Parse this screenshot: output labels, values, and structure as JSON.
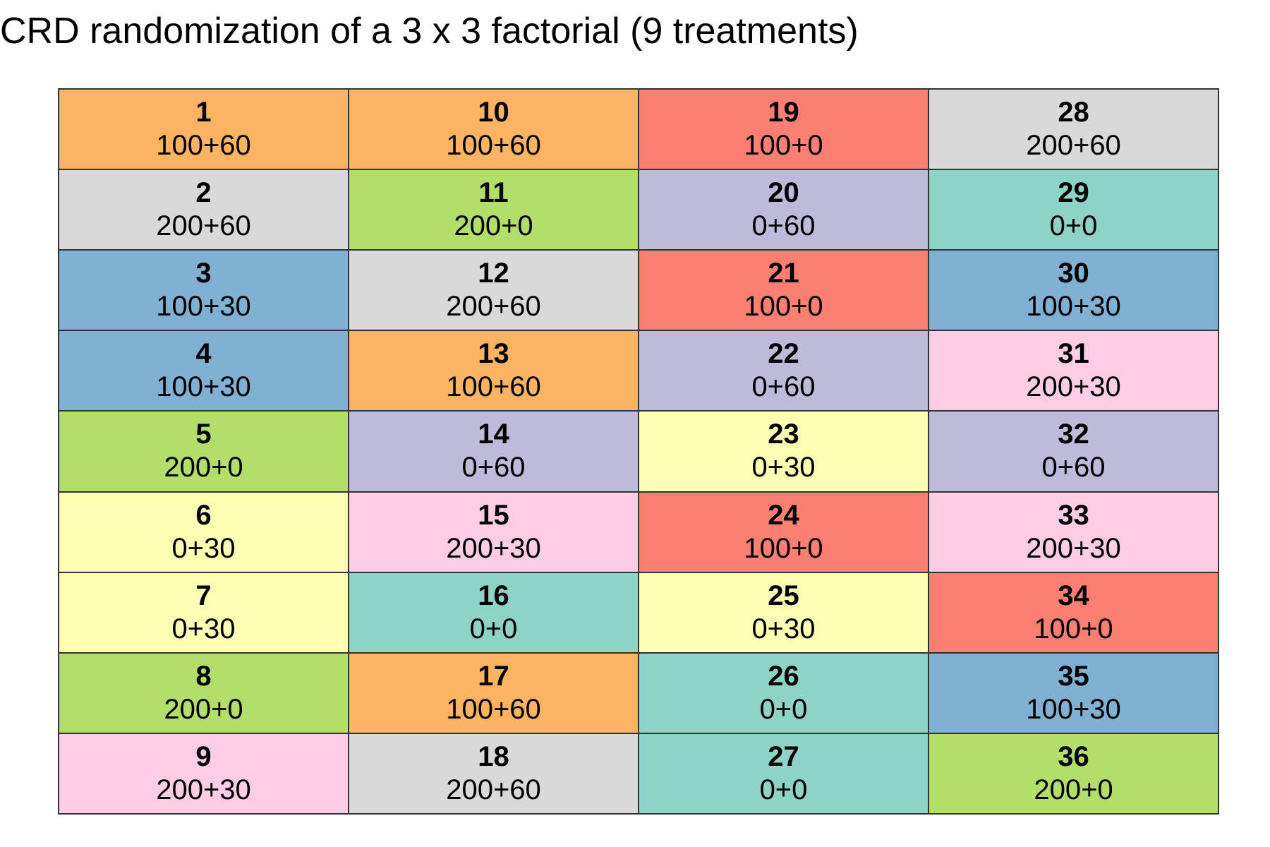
{
  "title": "CRD randomization of a 3 x 3 factorial (9 treatments)",
  "treatment_colors": {
    "100+60": "#fdb462",
    "100+0": "#fb8072",
    "200+60": "#d9d9d9",
    "200+0": "#b3de69",
    "0+60": "#bebada",
    "0+0": "#8dd3c7",
    "100+30": "#80b1d3",
    "200+30": "#fccde5",
    "0+30": "#ffffb3"
  },
  "plots": [
    {
      "plot": "1",
      "treatment": "100+60"
    },
    {
      "plot": "2",
      "treatment": "200+60"
    },
    {
      "plot": "3",
      "treatment": "100+30"
    },
    {
      "plot": "4",
      "treatment": "100+30"
    },
    {
      "plot": "5",
      "treatment": "200+0"
    },
    {
      "plot": "6",
      "treatment": "0+30"
    },
    {
      "plot": "7",
      "treatment": "0+30"
    },
    {
      "plot": "8",
      "treatment": "200+0"
    },
    {
      "plot": "9",
      "treatment": "200+30"
    },
    {
      "plot": "10",
      "treatment": "100+60"
    },
    {
      "plot": "11",
      "treatment": "200+0"
    },
    {
      "plot": "12",
      "treatment": "200+60"
    },
    {
      "plot": "13",
      "treatment": "100+60"
    },
    {
      "plot": "14",
      "treatment": "0+60"
    },
    {
      "plot": "15",
      "treatment": "200+30"
    },
    {
      "plot": "16",
      "treatment": "0+0"
    },
    {
      "plot": "17",
      "treatment": "100+60"
    },
    {
      "plot": "18",
      "treatment": "200+60"
    },
    {
      "plot": "19",
      "treatment": "100+0"
    },
    {
      "plot": "20",
      "treatment": "0+60"
    },
    {
      "plot": "21",
      "treatment": "100+0"
    },
    {
      "plot": "22",
      "treatment": "0+60"
    },
    {
      "plot": "23",
      "treatment": "0+30"
    },
    {
      "plot": "24",
      "treatment": "100+0"
    },
    {
      "plot": "25",
      "treatment": "0+30"
    },
    {
      "plot": "26",
      "treatment": "0+0"
    },
    {
      "plot": "27",
      "treatment": "0+0"
    },
    {
      "plot": "28",
      "treatment": "200+60"
    },
    {
      "plot": "29",
      "treatment": "0+0"
    },
    {
      "plot": "30",
      "treatment": "100+30"
    },
    {
      "plot": "31",
      "treatment": "200+30"
    },
    {
      "plot": "32",
      "treatment": "0+60"
    },
    {
      "plot": "33",
      "treatment": "200+30"
    },
    {
      "plot": "34",
      "treatment": "100+0"
    },
    {
      "plot": "35",
      "treatment": "100+30"
    },
    {
      "plot": "36",
      "treatment": "200+0"
    }
  ]
}
